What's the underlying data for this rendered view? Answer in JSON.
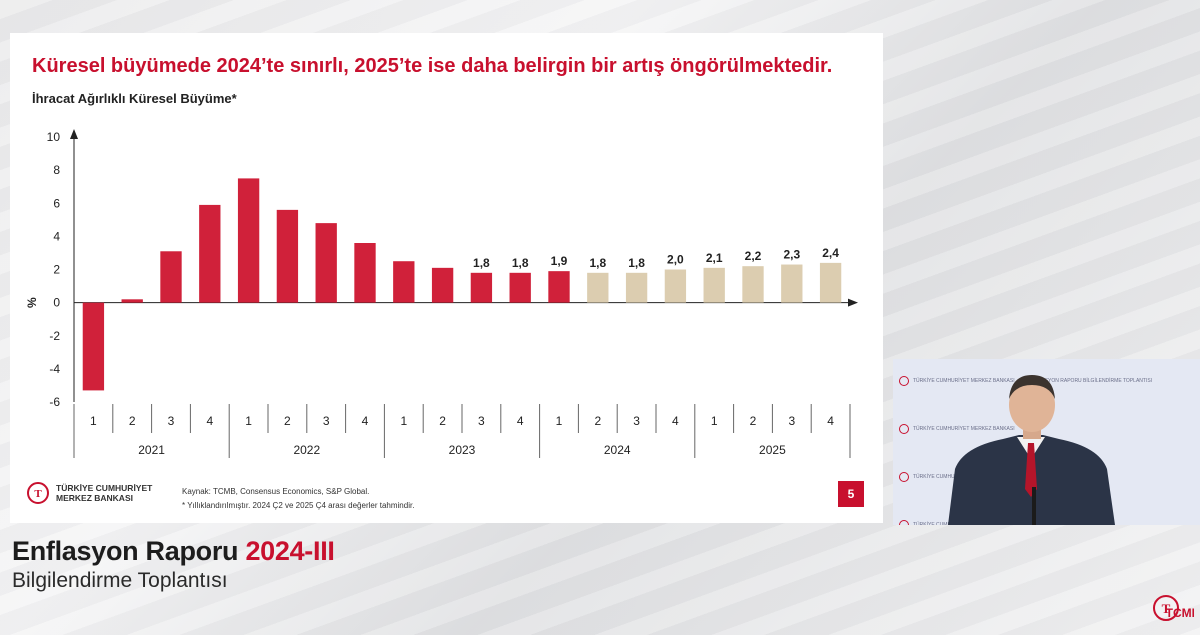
{
  "slide": {
    "title": "Küresel büyümede 2024’te sınırlı, 2025’te ise daha belirgin bir artış öngörülmektedir.",
    "subtitle": "İhracat Ağırlıklı Küresel Büyüme*",
    "logo_line1": "TÜRKİYE CUMHURİYET",
    "logo_line2": "MERKEZ BANKASI",
    "source_note": "Kaynak: TCMB, Consensus Economics, S&P Global.",
    "footnote": "* Yıllıklandırılmıştır. 2024 Ç2 ve 2025 Ç4 arası değerler tahmindir.",
    "page_number": "5"
  },
  "chart_data": {
    "type": "bar",
    "ylabel": "%",
    "ylim": [
      -6,
      10
    ],
    "yticks": [
      -6,
      -4,
      -2,
      0,
      2,
      4,
      6,
      8,
      10
    ],
    "years": [
      "2021",
      "2022",
      "2023",
      "2024",
      "2025"
    ],
    "categories": [
      "1",
      "2",
      "3",
      "4",
      "1",
      "2",
      "3",
      "4",
      "1",
      "2",
      "3",
      "4",
      "1",
      "2",
      "3",
      "4",
      "1",
      "2",
      "3",
      "4"
    ],
    "values": [
      -5.3,
      0.2,
      3.1,
      5.9,
      7.5,
      5.6,
      4.8,
      3.6,
      2.5,
      2.1,
      1.8,
      1.8,
      1.9,
      1.8,
      1.8,
      2.0,
      2.1,
      2.2,
      2.3,
      2.4
    ],
    "labels": [
      "",
      "",
      "",
      "",
      "",
      "",
      "",
      "",
      "",
      "",
      "1,8",
      "1,8",
      "1,9",
      "1,8",
      "1,8",
      "2,0",
      "2,1",
      "2,2",
      "2,3",
      "2,4"
    ],
    "forecast": [
      false,
      false,
      false,
      false,
      false,
      false,
      false,
      false,
      false,
      false,
      false,
      false,
      false,
      true,
      true,
      true,
      true,
      true,
      true,
      true
    ],
    "colors": {
      "actual": "#d0213a",
      "forecast": "#dccdb0"
    },
    "grid": false,
    "legend": "none"
  },
  "caption": {
    "line1_prefix": "Enflasyon Raporu ",
    "line1_accent": "2024-III",
    "line2": "Bilgilendirme Toplantısı"
  },
  "video": {
    "backdrop_text_a": "TÜRKİYE CUMHURİYET MERKEZ BANKASI",
    "backdrop_text_b": "ENFLASYON RAPORU BİLGİLENDİRME TOPLANTISI"
  },
  "corner_logo": "TCMB"
}
